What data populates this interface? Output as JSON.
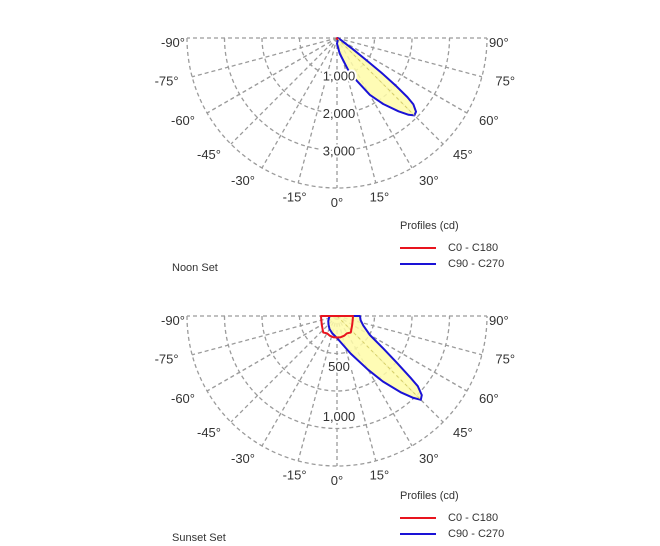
{
  "colors": {
    "c0_c180": "#e8141e",
    "c90_c270": "#1a12d6",
    "fill": "#fffca8",
    "fill_stroke": "#d6cf6a",
    "grid": "#9b9b9b",
    "background": "#ffffff"
  },
  "chart_data": [
    {
      "type": "polar",
      "name": "Noon Set",
      "panel_label": "Noon Set",
      "legend_title": "Profiles (cd)",
      "angle_ticks": [
        "-90°",
        "-75°",
        "-60°",
        "-45°",
        "-30°",
        "-15°",
        "0°",
        "15°",
        "30°",
        "45°",
        "60°",
        "75°",
        "90°"
      ],
      "radial_ticks": [
        "1,000",
        "2,000",
        "3,000"
      ],
      "radial_tick_values": [
        1000,
        2000,
        3000
      ],
      "rmax": 4000,
      "grid": true,
      "legend_position": "bottom-right",
      "series": [
        {
          "name": "C0 - C180",
          "color_key": "c0_c180",
          "points": [
            [
              -45,
              12
            ],
            [
              -15,
              20
            ],
            [
              0,
              25
            ],
            [
              15,
              20
            ],
            [
              45,
              12
            ]
          ]
        },
        {
          "name": "C90 - C270",
          "color_key": "c90_c270",
          "points": [
            [
              0,
              150
            ],
            [
              10,
              420
            ],
            [
              20,
              1000
            ],
            [
              30,
              1750
            ],
            [
              35,
              2150
            ],
            [
              40,
              2550
            ],
            [
              43,
              2800
            ],
            [
              45,
              2920
            ],
            [
              47,
              2880
            ],
            [
              49,
              2700
            ],
            [
              50,
              2450
            ],
            [
              51,
              2000
            ],
            [
              52,
              1500
            ],
            [
              53,
              1000
            ],
            [
              55,
              500
            ],
            [
              58,
              220
            ],
            [
              62,
              120
            ],
            [
              70,
              60
            ],
            [
              85,
              25
            ],
            [
              90,
              15
            ],
            [
              20,
              60
            ],
            [
              0,
              150
            ]
          ]
        }
      ]
    },
    {
      "type": "polar",
      "name": "Sunset Set",
      "panel_label": "Sunset Set",
      "legend_title": "Profiles (cd)",
      "angle_ticks": [
        "-90°",
        "-75°",
        "-60°",
        "-45°",
        "-30°",
        "-15°",
        "0°",
        "15°",
        "30°",
        "45°",
        "60°",
        "75°",
        "90°"
      ],
      "radial_ticks": [
        "500",
        "1,000"
      ],
      "radial_tick_values": [
        500,
        1000
      ],
      "rmax": 1500,
      "grid": true,
      "legend_position": "bottom-right",
      "series": [
        {
          "name": "C0 - C180",
          "color_key": "c0_c180",
          "points": [
            [
              -90,
              160
            ],
            [
              -80,
              160
            ],
            [
              -60,
              175
            ],
            [
              -40,
              215
            ],
            [
              -30,
              200
            ],
            [
              -20,
              210
            ],
            [
              -10,
              215
            ],
            [
              0,
              215
            ],
            [
              10,
              215
            ],
            [
              20,
              210
            ],
            [
              30,
              200
            ],
            [
              40,
              215
            ],
            [
              60,
              175
            ],
            [
              80,
              160
            ],
            [
              90,
              160
            ]
          ]
        },
        {
          "name": "C90 - C270",
          "color_key": "c90_c270",
          "points": [
            [
              -90,
              70
            ],
            [
              -80,
              80
            ],
            [
              -60,
              100
            ],
            [
              -45,
              120
            ],
            [
              -30,
              150
            ],
            [
              -15,
              180
            ],
            [
              0,
              220
            ],
            [
              10,
              280
            ],
            [
              20,
              400
            ],
            [
              30,
              620
            ],
            [
              35,
              800
            ],
            [
              40,
              1000
            ],
            [
              43,
              1120
            ],
            [
              45,
              1185
            ],
            [
              47,
              1160
            ],
            [
              49,
              1070
            ],
            [
              50,
              960
            ],
            [
              52,
              760
            ],
            [
              55,
              560
            ],
            [
              60,
              380
            ],
            [
              70,
              280
            ],
            [
              80,
              240
            ],
            [
              90,
              230
            ]
          ]
        }
      ]
    }
  ]
}
